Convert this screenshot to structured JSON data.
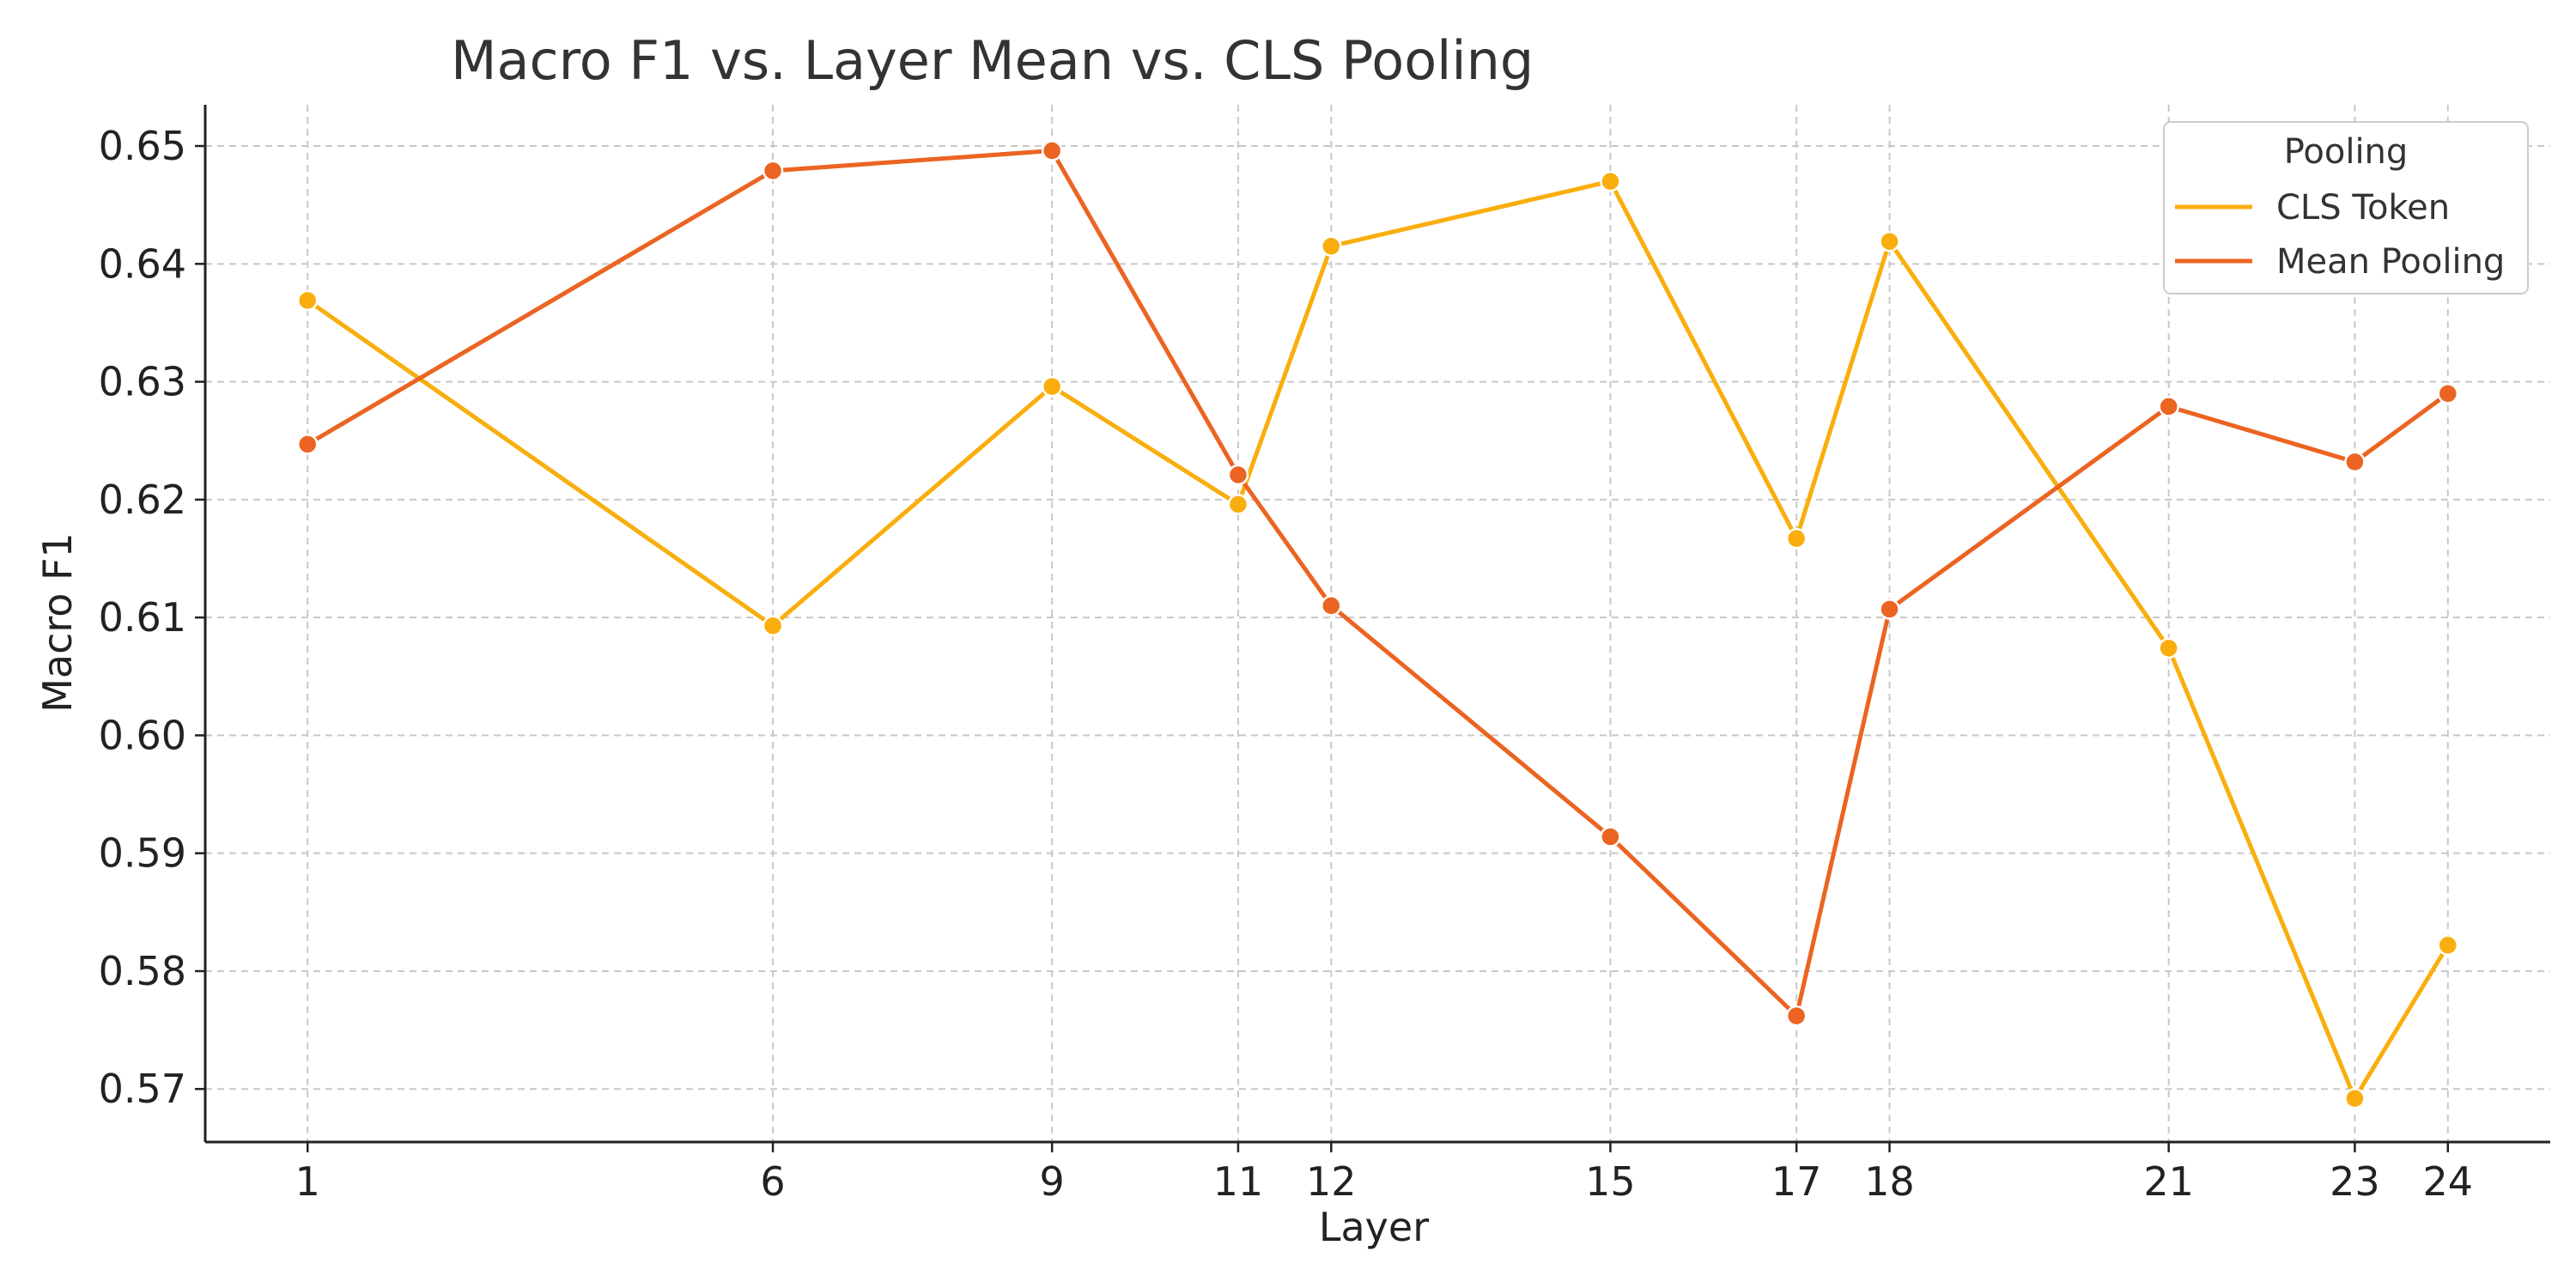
{
  "chart_data": {
    "type": "line",
    "title": "Macro F1 vs. Layer  Mean vs. CLS Pooling",
    "xlabel": "Layer",
    "ylabel": "Macro F1",
    "x": [
      1,
      6,
      9,
      11,
      12,
      15,
      17,
      18,
      21,
      23,
      24
    ],
    "xticks": [
      "1",
      "6",
      "9",
      "11",
      "12",
      "15",
      "17",
      "18",
      "21",
      "23",
      "24"
    ],
    "yticks": [
      "0.57",
      "0.58",
      "0.59",
      "0.60",
      "0.61",
      "0.62",
      "0.63",
      "0.64",
      "0.65"
    ],
    "ylim": [
      0.5655,
      0.6535
    ],
    "xlim": [
      -0.1,
      25.1
    ],
    "grid": true,
    "legend": {
      "title": "Pooling",
      "placement": "top-right"
    },
    "series": [
      {
        "name": "CLS Token",
        "color": "#F9AE0D",
        "values": [
          0.6369,
          0.6093,
          0.6296,
          0.6196,
          0.6415,
          0.647,
          0.6167,
          0.6419,
          0.6074,
          0.5692,
          0.5822
        ]
      },
      {
        "name": "Mean Pooling",
        "color": "#EB6422",
        "values": [
          0.6247,
          0.6479,
          0.6496,
          0.6221,
          0.611,
          0.5914,
          0.5762,
          0.6107,
          0.6279,
          0.6232,
          0.629
        ]
      }
    ]
  }
}
